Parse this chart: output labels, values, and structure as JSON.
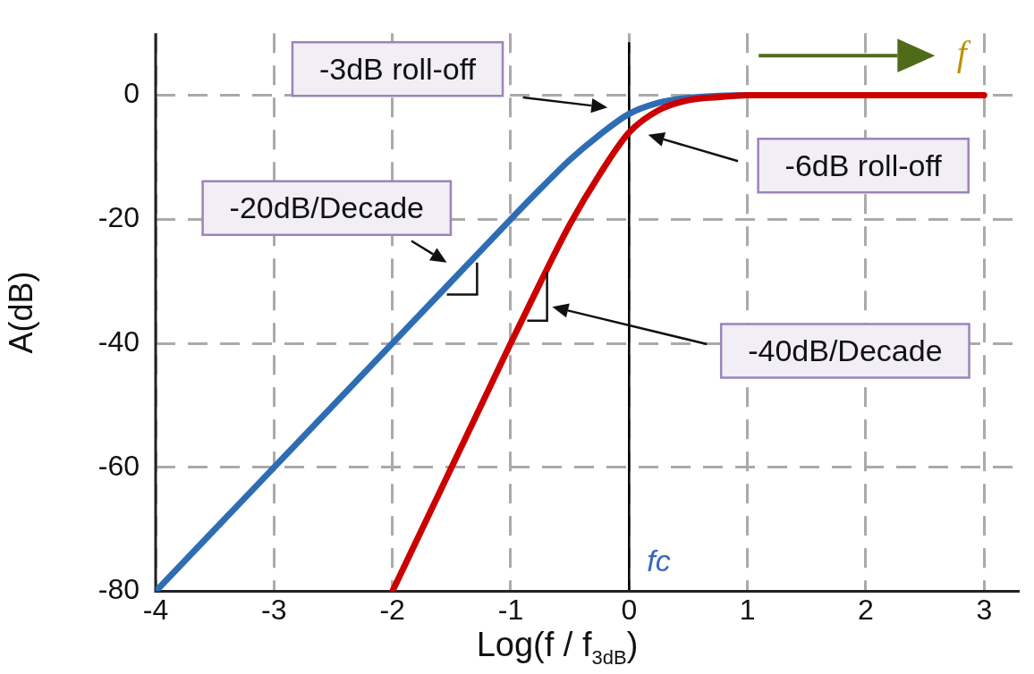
{
  "chart_data": {
    "type": "line",
    "xlabel": "Log(f / f$_{3dB}$)",
    "ylabel": "A(dB)",
    "xlim": [
      -4,
      3.3
    ],
    "ylim": [
      -80,
      10
    ],
    "xticks": [
      -4,
      -3,
      -2,
      -1,
      0,
      1,
      2,
      3
    ],
    "yticks": [
      -80,
      -60,
      -40,
      -20,
      0
    ],
    "grid": true,
    "legend": false,
    "marker": "none",
    "line_style": "solid",
    "series": [
      {
        "color": "#2e6db4",
        "x": [
          -4,
          -3,
          -2,
          -1.5,
          -1,
          -0.75,
          -0.5,
          -0.25,
          0,
          0.25,
          0.5,
          0.75,
          1
        ],
        "values": [
          -80,
          -60,
          -40,
          -30,
          -20,
          -15.1,
          -10.4,
          -6.4,
          -3,
          -1.2,
          -0.4,
          -0.1,
          0
        ]
      },
      {
        "color": "#cc0000",
        "x": [
          -2,
          -1.5,
          -1,
          -0.75,
          -0.5,
          -0.25,
          0,
          0.25,
          0.5,
          0.75,
          1,
          2,
          3
        ],
        "values": [
          -80,
          -60,
          -40,
          -30.2,
          -20.8,
          -12.8,
          -6,
          -2.4,
          -0.8,
          -0.3,
          0,
          0,
          0
        ]
      }
    ],
    "ref_lines": [
      {
        "axis": "x",
        "value": 0,
        "label": "fc",
        "color": "#000000"
      }
    ],
    "annotations": [
      "-3dB roll-off",
      "-6dB roll-off",
      "-20dB/Decade",
      "-40dB/Decade",
      "f"
    ]
  }
}
